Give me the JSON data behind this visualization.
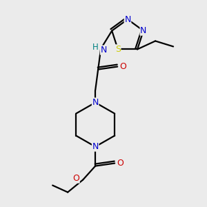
{
  "bg_color": "#ebebeb",
  "atom_colors": {
    "C": "#000000",
    "N": "#0000cc",
    "O": "#cc0000",
    "S": "#cccc00",
    "H": "#008080"
  },
  "bond_color": "#000000",
  "bond_width": 1.6,
  "figsize": [
    3.0,
    3.0
  ],
  "dpi": 100
}
